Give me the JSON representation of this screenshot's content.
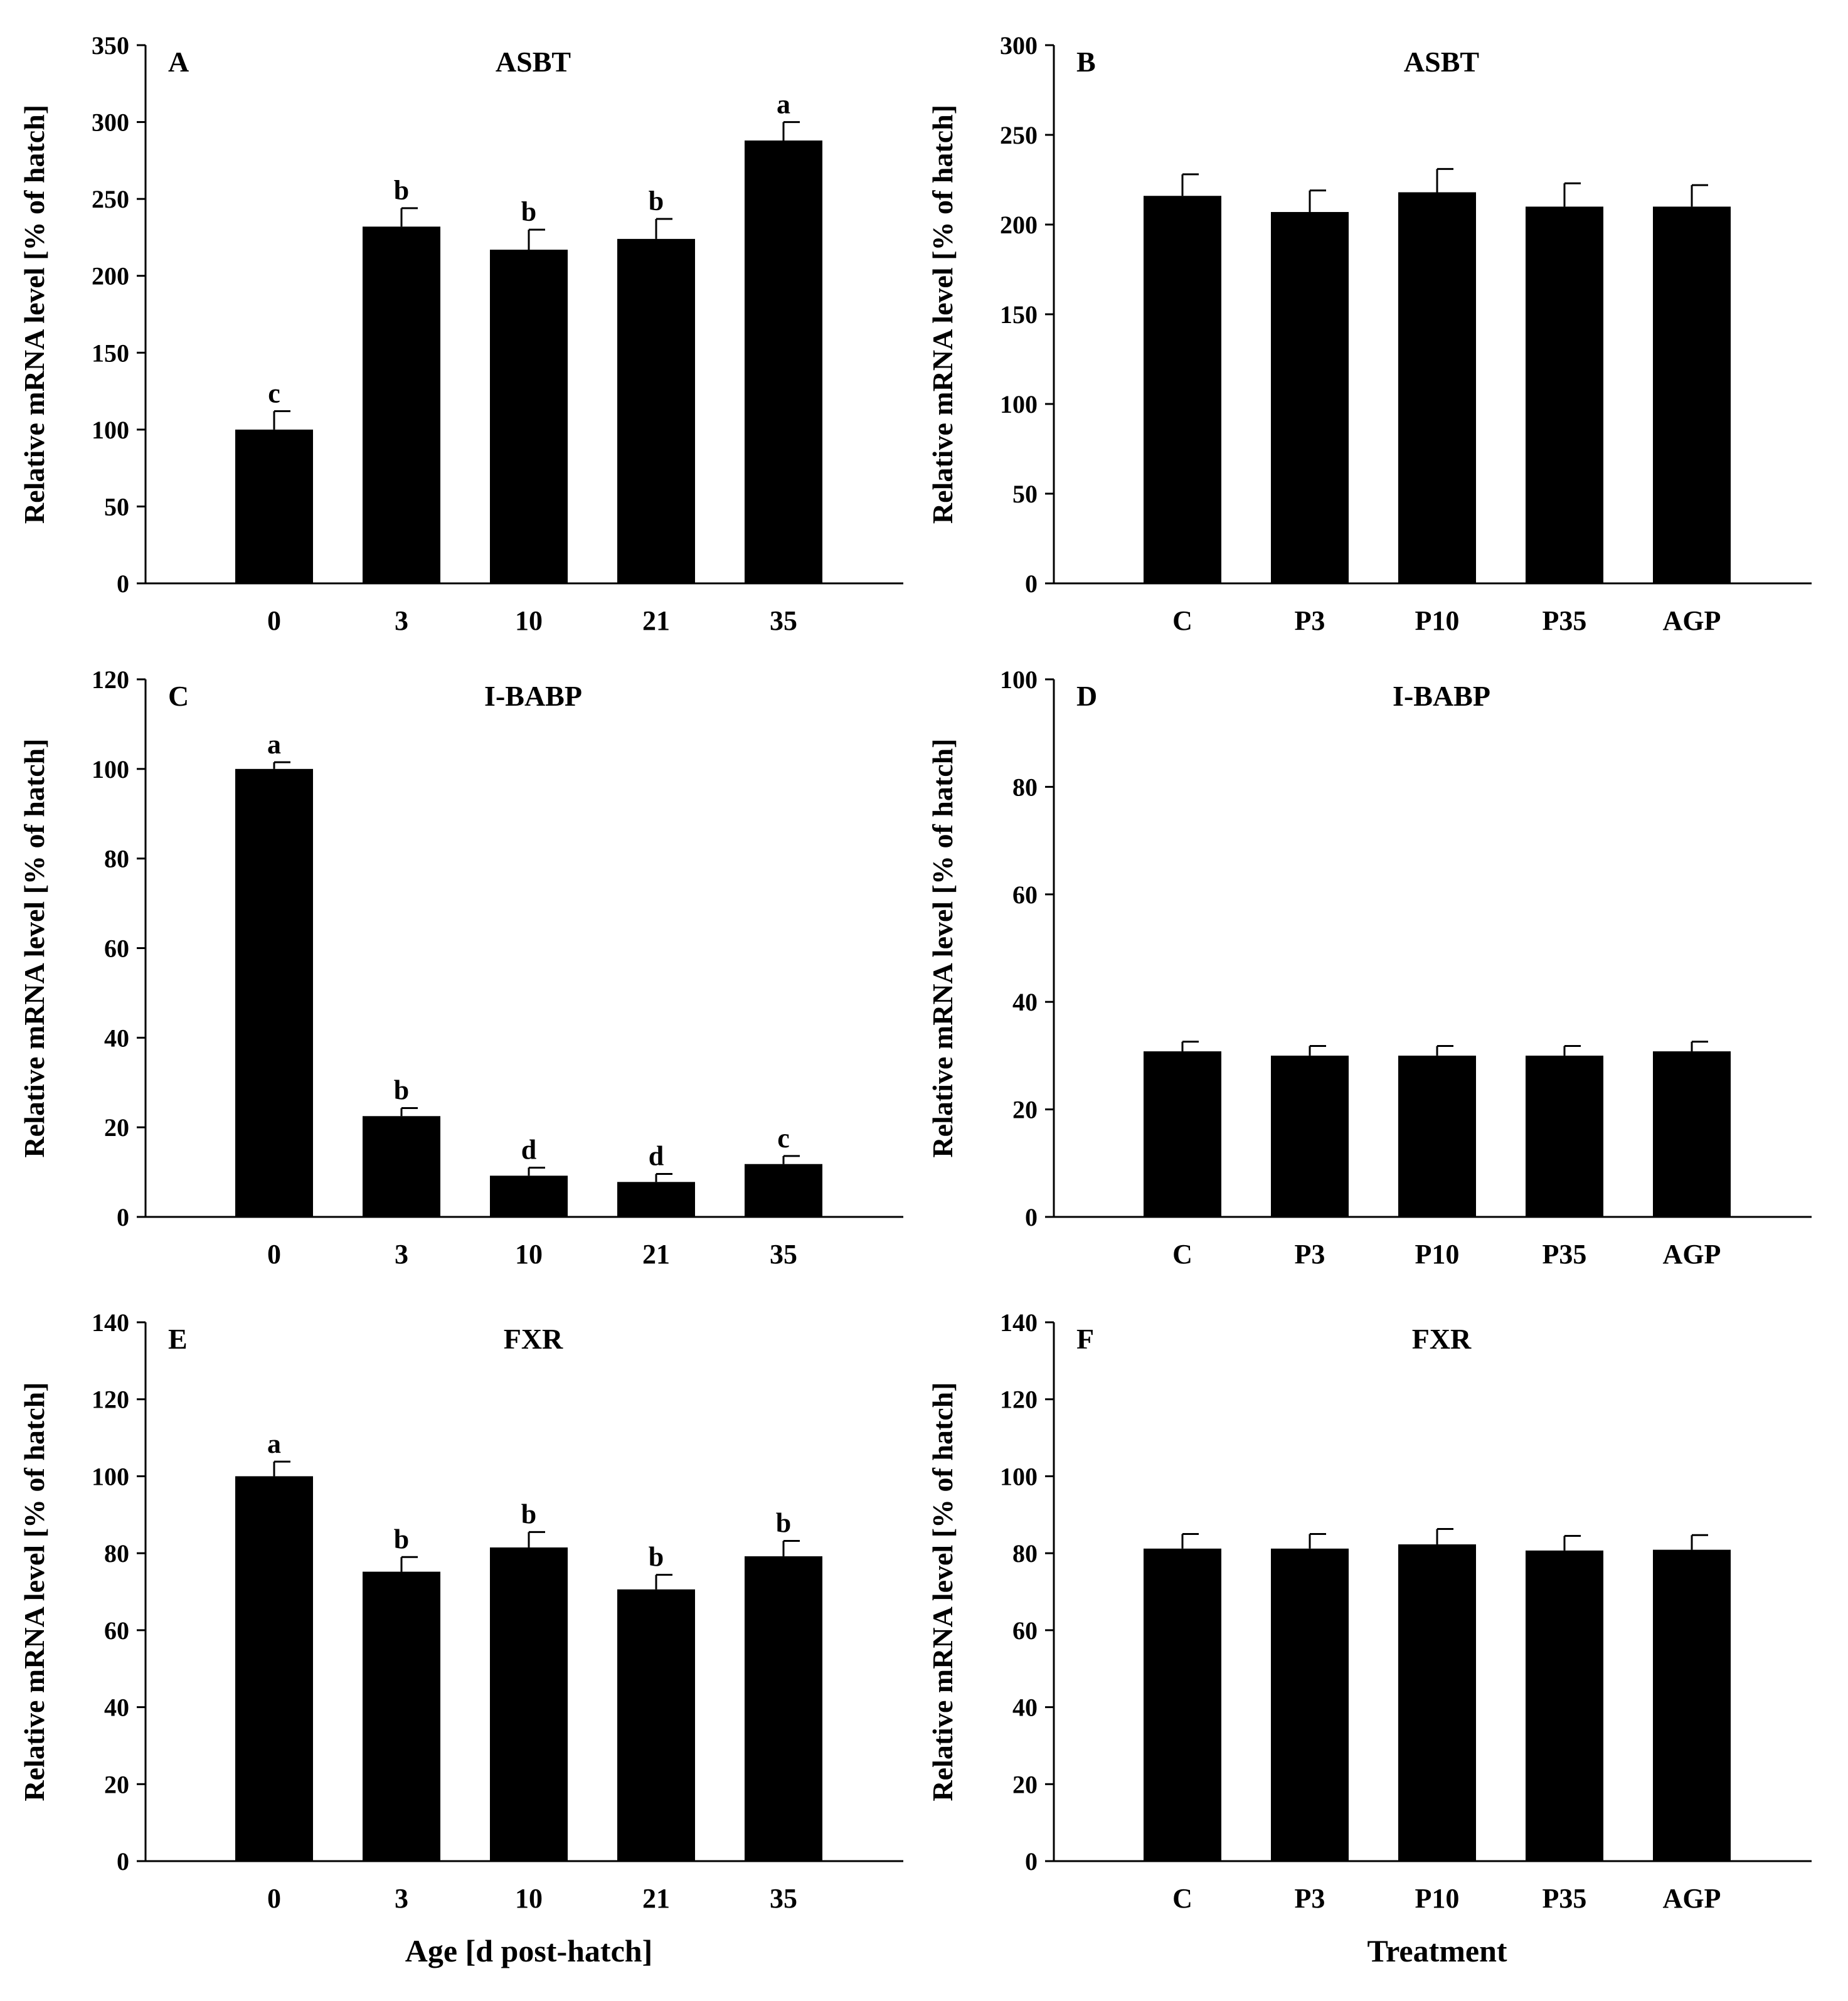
{
  "chart_data": [
    {
      "panel": "A",
      "title": "ASBT",
      "type": "bar",
      "ylabel": "Relative mRNA level [% of hatch]",
      "xlabel": "",
      "ylim": [
        0,
        350
      ],
      "yticks": [
        "0",
        "50",
        "100",
        "150",
        "200",
        "250",
        "300",
        "350"
      ],
      "categories": [
        "0",
        "3",
        "10",
        "21",
        "35"
      ],
      "values": [
        100,
        232,
        217,
        224,
        288
      ],
      "errors": [
        12,
        12,
        13,
        13,
        12
      ],
      "significance": [
        "c",
        "b",
        "b",
        "b",
        "a"
      ]
    },
    {
      "panel": "B",
      "title": "ASBT",
      "type": "bar",
      "ylabel": "Relative mRNA level [% of hatch]",
      "xlabel": "",
      "ylim": [
        0,
        300
      ],
      "yticks": [
        "0",
        "50",
        "100",
        "150",
        "200",
        "250",
        "300"
      ],
      "categories": [
        "C",
        "P3",
        "P10",
        "P35",
        "AGP"
      ],
      "values": [
        216,
        207,
        218,
        210,
        210
      ],
      "errors": [
        12,
        12,
        13,
        13,
        12
      ],
      "significance": [
        "",
        "",
        "",
        "",
        ""
      ]
    },
    {
      "panel": "C",
      "title": "I-BABP",
      "type": "bar",
      "ylabel": "Relative mRNA level [% of hatch]",
      "xlabel": "",
      "ylim": [
        0,
        120
      ],
      "yticks": [
        "0",
        "20",
        "40",
        "60",
        "80",
        "100",
        "120"
      ],
      "categories": [
        "0",
        "3",
        "10",
        "21",
        "35"
      ],
      "values": [
        100,
        22.5,
        9.2,
        7.8,
        11.8
      ],
      "errors": [
        1.5,
        1.8,
        1.8,
        1.8,
        1.8
      ],
      "significance": [
        "a",
        "b",
        "d",
        "d",
        "c"
      ]
    },
    {
      "panel": "D",
      "title": "I-BABP",
      "type": "bar",
      "ylabel": "Relative mRNA level [% of hatch]",
      "xlabel": "",
      "ylim": [
        0,
        100
      ],
      "yticks": [
        "0",
        "20",
        "40",
        "60",
        "80",
        "100"
      ],
      "categories": [
        "C",
        "P3",
        "P10",
        "P35",
        "AGP"
      ],
      "values": [
        30.8,
        30.0,
        30.0,
        30.0,
        30.8
      ],
      "errors": [
        1.8,
        1.8,
        1.8,
        1.8,
        1.8
      ],
      "significance": [
        "",
        "",
        "",
        "",
        ""
      ]
    },
    {
      "panel": "E",
      "title": "FXR",
      "type": "bar",
      "ylabel": "Relative mRNA level [% of hatch]",
      "xlabel": "Age [d post-hatch]",
      "ylim": [
        0,
        140
      ],
      "yticks": [
        "0",
        "20",
        "40",
        "60",
        "80",
        "100",
        "120",
        "140"
      ],
      "categories": [
        "0",
        "3",
        "10",
        "21",
        "35"
      ],
      "values": [
        100,
        75.2,
        81.5,
        70.6,
        79.2
      ],
      "errors": [
        3.8,
        3.8,
        4.0,
        3.8,
        4.0
      ],
      "significance": [
        "a",
        "b",
        "b",
        "b",
        "b"
      ]
    },
    {
      "panel": "F",
      "title": "FXR",
      "type": "bar",
      "ylabel": "Relative mRNA level [% of hatch]",
      "xlabel": "Treatment",
      "ylim": [
        0,
        140
      ],
      "yticks": [
        "0",
        "20",
        "40",
        "60",
        "80",
        "100",
        "120",
        "140"
      ],
      "categories": [
        "C",
        "P3",
        "P10",
        "P35",
        "AGP"
      ],
      "values": [
        81.2,
        81.2,
        82.3,
        80.7,
        80.9
      ],
      "errors": [
        3.8,
        3.8,
        4.0,
        3.8,
        3.8
      ],
      "significance": [
        "",
        "",
        "",
        "",
        ""
      ]
    }
  ],
  "colors": {
    "bar": "#000000",
    "axis": "#000000",
    "background": "#ffffff"
  }
}
